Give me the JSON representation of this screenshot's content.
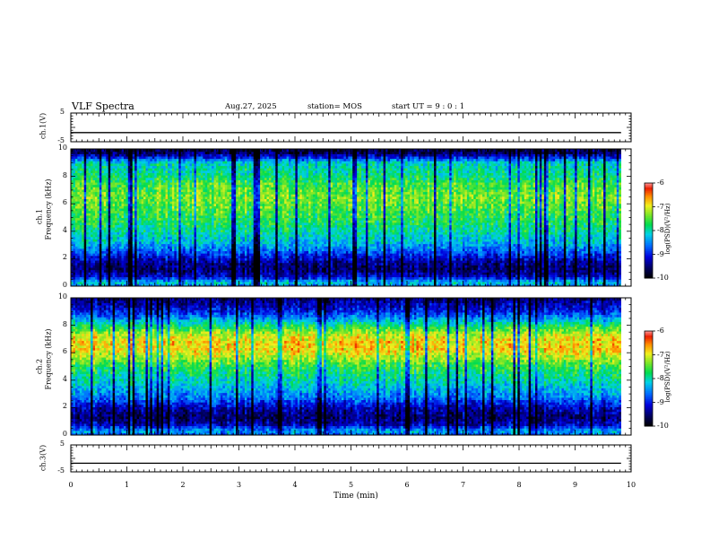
{
  "header": {
    "title": "VLF Spectra",
    "date": "Aug.27, 2025",
    "station": "station= MOS",
    "start": "start  UT =   9 : 0  : 1"
  },
  "chart_data": [
    {
      "type": "line",
      "panel": "ch1-voltage",
      "ylabel": "ch.1(V)",
      "ylim": [
        -5,
        5
      ],
      "yticks": [
        "5",
        "-5"
      ],
      "xlim": [
        0,
        10
      ],
      "series": [
        {
          "x": [
            0,
            9.82
          ],
          "values": [
            -1.8,
            -1.8
          ]
        }
      ]
    },
    {
      "type": "heatmap",
      "panel": "ch1-spectrogram",
      "ylabel": "ch.1",
      "ylabel2": "Frequency (kHz)",
      "ylim": [
        0,
        10
      ],
      "yticks": [
        "0",
        "2",
        "4",
        "6",
        "8",
        "10"
      ],
      "xlim": [
        0,
        10
      ],
      "data_xmax": 9.82,
      "profile_freq": [
        0,
        0.3,
        0.7,
        1.2,
        1.8,
        2.5,
        3.2,
        4,
        5,
        6,
        6.5,
        7,
        7.5,
        8,
        8.5,
        9,
        9.4,
        9.7,
        10
      ],
      "profile_logpsd": [
        -8.6,
        -8.2,
        -9.2,
        -9.6,
        -9.4,
        -8.8,
        -8.3,
        -8,
        -7.7,
        -7.5,
        -7.4,
        -7.5,
        -7.6,
        -7.9,
        -8,
        -8.1,
        -9,
        -9.6,
        -9.8
      ],
      "colorbar": {
        "label": "log(PSD)(V²/Hz)",
        "ticks": [
          "-6",
          "-7",
          "-8",
          "-9",
          "-10"
        ],
        "range": [
          -10,
          -6
        ]
      }
    },
    {
      "type": "heatmap",
      "panel": "ch2-spectrogram",
      "ylabel": "ch.2",
      "ylabel2": "Frequency (kHz)",
      "ylim": [
        0,
        10
      ],
      "yticks": [
        "0",
        "2",
        "4",
        "6",
        "8",
        "10"
      ],
      "xlim": [
        0,
        10
      ],
      "data_xmax": 9.82,
      "profile_freq": [
        0,
        0.3,
        0.8,
        1.3,
        2,
        2.8,
        3.5,
        4.2,
        5,
        5.6,
        6.2,
        6.8,
        7.3,
        7.8,
        8.3,
        8.8,
        9.3,
        9.7,
        10
      ],
      "profile_logpsd": [
        -8.8,
        -8.4,
        -9.3,
        -9.6,
        -9.3,
        -8.6,
        -8.3,
        -8,
        -7.7,
        -7.3,
        -6.9,
        -6.9,
        -7.1,
        -7.6,
        -8.2,
        -8.8,
        -9.2,
        -9.4,
        -9.6
      ],
      "colorbar": {
        "label": "log(PSD)(V²/Hz)",
        "ticks": [
          "-6",
          "-7",
          "-8",
          "-9",
          "-10"
        ],
        "range": [
          -10,
          -6
        ]
      }
    },
    {
      "type": "line",
      "panel": "ch3-voltage",
      "ylabel": "ch.3(V)",
      "ylim": [
        -5,
        5
      ],
      "yticks": [
        "5",
        "-5"
      ],
      "xlim": [
        0,
        10
      ],
      "series": [
        {
          "x": [
            0,
            9.82
          ],
          "values": [
            -1.8,
            -1.8
          ]
        }
      ]
    }
  ],
  "xaxis": {
    "label": "Time (min)",
    "ticks": [
      "0",
      "1",
      "2",
      "3",
      "4",
      "5",
      "6",
      "7",
      "8",
      "9",
      "10"
    ]
  }
}
